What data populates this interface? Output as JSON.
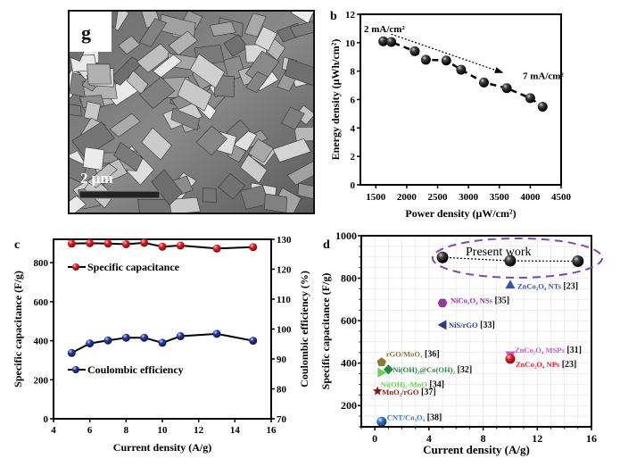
{
  "panel_g": {
    "label": "g",
    "scale_bar_text": "2 μm"
  },
  "chart_data": [
    {
      "panel": "b",
      "type": "scatter",
      "xlabel": "Power density (μW/cm²)",
      "ylabel": "Energy density (μWh/cm²)",
      "xlim": [
        1250,
        4500
      ],
      "ylim": [
        0,
        12
      ],
      "xticks": [
        1500,
        2000,
        2500,
        3000,
        3500,
        4000,
        4500
      ],
      "yticks": [
        0,
        2,
        4,
        6,
        8,
        10,
        12
      ],
      "x": [
        1620,
        1750,
        2130,
        2310,
        2640,
        2880,
        3250,
        3620,
        4000,
        4200
      ],
      "y": [
        10.1,
        10.05,
        9.4,
        8.8,
        8.75,
        8.1,
        7.2,
        6.8,
        6.1,
        5.5
      ],
      "annotations": [
        {
          "text": "2 mA/cm²",
          "position": "start"
        },
        {
          "text": "7 mA/cm²",
          "position": "end"
        }
      ]
    },
    {
      "panel": "c",
      "type": "line",
      "xlabel": "Current density (A/g)",
      "ylabel": "Specific capacitance (F/g)",
      "y2label": "Coulombic efficiency (%)",
      "xlim": [
        4,
        16
      ],
      "ylim": [
        0,
        920
      ],
      "y2lim": [
        70,
        130
      ],
      "xticks": [
        4,
        6,
        8,
        10,
        12,
        14,
        16
      ],
      "yticks": [
        0,
        200,
        400,
        600,
        800
      ],
      "y2ticks": [
        70,
        80,
        90,
        100,
        110,
        120,
        130
      ],
      "x": [
        5,
        6,
        7,
        8,
        9,
        10,
        11,
        13,
        15
      ],
      "series": [
        {
          "name": "Specific capacitance",
          "axis": "left",
          "color": "#e8202a",
          "values": [
            898,
            900,
            898,
            895,
            902,
            882,
            888,
            873,
            880
          ]
        },
        {
          "name": "Coulombic efficiency",
          "axis": "right",
          "color": "#2b3ea0",
          "values": [
            92.0,
            95.2,
            96.2,
            97.1,
            97.1,
            95.4,
            97.6,
            98.4,
            96.1
          ]
        }
      ],
      "legend": "upper-left"
    },
    {
      "panel": "d",
      "type": "scatter",
      "xlabel": "Current density (A/g)",
      "ylabel": "Specific capacitance (F/g)",
      "xlim": [
        -1,
        16
      ],
      "ylim": [
        100,
        1000
      ],
      "xticks": [
        0,
        4,
        8,
        12,
        16
      ],
      "yticks": [
        200,
        400,
        600,
        800,
        1000
      ],
      "grid": true,
      "present_work": {
        "label": "Present work",
        "x": [
          5,
          10,
          15
        ],
        "y": [
          898,
          882,
          880
        ]
      },
      "points": [
        {
          "label": "ZnCo₂O₄ NTs",
          "ref": "[23]",
          "x": 10,
          "y": 770,
          "color": "#3a4fb0",
          "marker": "triangle-up"
        },
        {
          "label": "NiCo₂O₄ NSs",
          "ref": "[35]",
          "x": 5,
          "y": 683,
          "color": "#8e3a9c",
          "marker": "hexagon"
        },
        {
          "label": "NiS/rGO",
          "ref": "[33]",
          "x": 5,
          "y": 580,
          "color": "#2a3a8a",
          "marker": "triangle-left"
        },
        {
          "label": "ZnCo₂O₄ MSPs",
          "ref": "[31]",
          "x": 10,
          "y": 437,
          "color": "#c05ac8",
          "marker": "triangle-down"
        },
        {
          "label": "ZnCo₂O₄ NPs",
          "ref": "[23]",
          "x": 10,
          "y": 420,
          "color": "#e8202a",
          "marker": "circle"
        },
        {
          "label": "rGO/MoO₃",
          "ref": "[36]",
          "x": 0.5,
          "y": 404,
          "color": "#8a7a3a",
          "marker": "pentagon"
        },
        {
          "label": "Ni(OH)₂@Co(OH)₂",
          "ref": "[32]",
          "x": 1,
          "y": 370,
          "color": "#1e8a3a",
          "marker": "diamond"
        },
        {
          "label": "Ni(OH)₂-MnO",
          "ref": "[34]",
          "x": 0.5,
          "y": 355,
          "color": "#6ccf5a",
          "marker": "triangle-right"
        },
        {
          "label": "MnO₂/rGO",
          "ref": "[37]",
          "x": 0.2,
          "y": 268,
          "color": "#8a1a1a",
          "marker": "star"
        },
        {
          "label": "CNT/Co₃O₄",
          "ref": "[38]",
          "x": 0.5,
          "y": 124,
          "color": "#3a7ac8",
          "marker": "circle"
        }
      ]
    }
  ]
}
